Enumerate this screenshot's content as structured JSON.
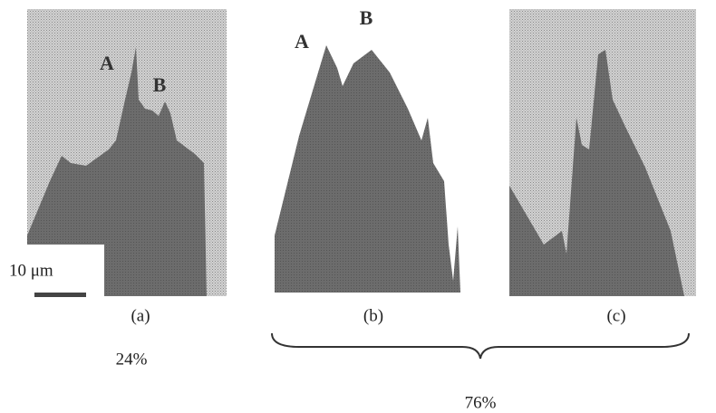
{
  "panels": [
    {
      "label": "(a)",
      "markers": [
        "A",
        "B"
      ]
    },
    {
      "label": "(b)",
      "markers": [
        "A",
        "B"
      ]
    },
    {
      "label": "(c)"
    }
  ],
  "scale_bar": "10 μm",
  "fractions": [
    "24%",
    "76%"
  ]
}
